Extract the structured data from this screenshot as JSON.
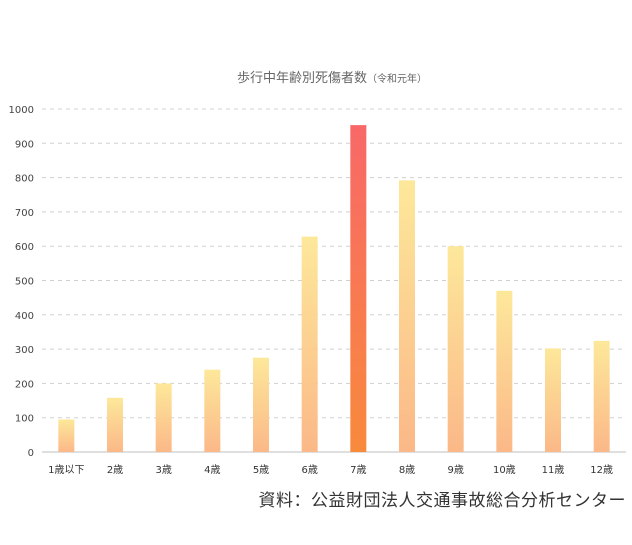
{
  "chart_data": {
    "type": "bar",
    "title": "歩行中年齢別死傷者数",
    "subtitle": "（令和元年）",
    "categories": [
      "1歳以下",
      "2歳",
      "3歳",
      "4歳",
      "5歳",
      "6歳",
      "7歳",
      "8歳",
      "9歳",
      "10歳",
      "11歳",
      "12歳"
    ],
    "values": [
      95,
      158,
      200,
      240,
      275,
      628,
      953,
      792,
      600,
      470,
      302,
      324
    ],
    "ylim": [
      0,
      1000
    ],
    "yticks": [
      "0",
      "100",
      "200",
      "300",
      "400",
      "500",
      "600",
      "700",
      "800",
      "900",
      "1000"
    ],
    "grid": true,
    "highlight_index": 6,
    "colors": {
      "bar_top": "#fde89a",
      "bar_bottom": "#fbb888",
      "highlight_top": "#f86868",
      "highlight_bottom": "#f88a3c"
    }
  },
  "source": "資料：公益財団法人交通事故総合分析センター"
}
